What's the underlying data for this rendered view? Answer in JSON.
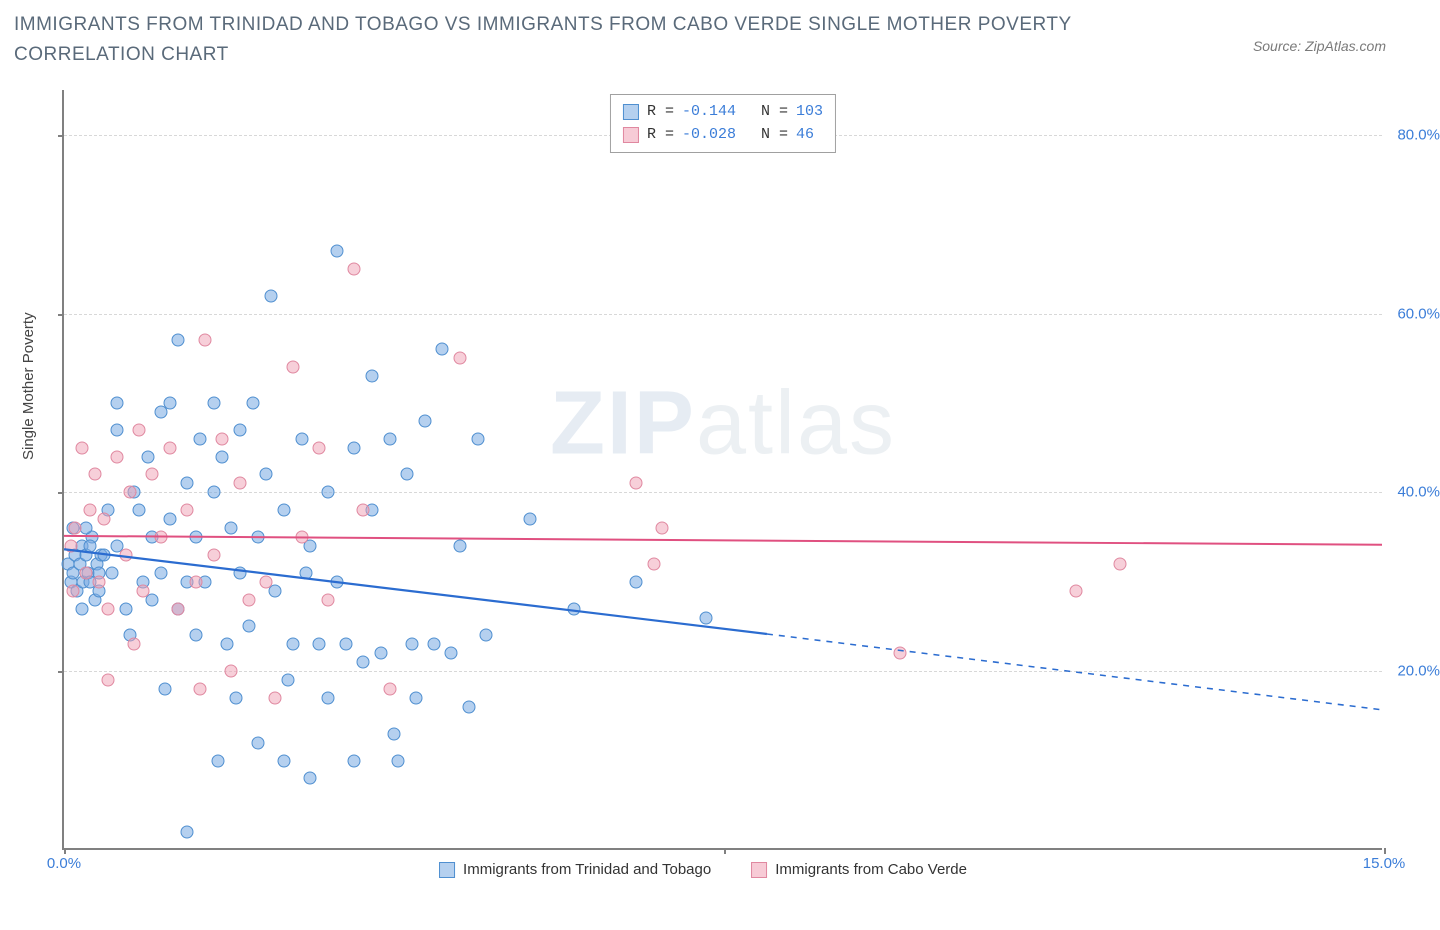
{
  "title": "IMMIGRANTS FROM TRINIDAD AND TOBAGO VS IMMIGRANTS FROM CABO VERDE SINGLE MOTHER POVERTY CORRELATION CHART",
  "source": "Source: ZipAtlas.com",
  "watermark_zip": "ZIP",
  "watermark_atlas": "atlas",
  "chart": {
    "type": "scatter",
    "ylabel": "Single Mother Poverty",
    "xlim": [
      0,
      15
    ],
    "ylim": [
      0,
      85
    ],
    "y_gridlines": [
      20,
      40,
      60,
      80
    ],
    "y_tick_labels": [
      "20.0%",
      "40.0%",
      "60.0%",
      "80.0%"
    ],
    "x_ticks": [
      0,
      7.5,
      15
    ],
    "x_tick_labels": [
      "0.0%",
      "",
      "15.0%"
    ],
    "background_color": "#ffffff",
    "grid_color": "#d8d8d8",
    "axis_color": "#808080",
    "tick_label_color": "#3b7dd8",
    "series": [
      {
        "key": "a",
        "name": "Immigrants from Trinidad and Tobago",
        "R": "-0.144",
        "N": "103",
        "marker_fill": "rgba(120,170,225,0.55)",
        "marker_stroke": "#4f8fd0",
        "marker_size": 13,
        "trend": {
          "x1": 0,
          "y1": 33.5,
          "x2": 8,
          "y2": 24,
          "x_dash_to": 15,
          "y_dash_to": 15.5,
          "color": "#2b6cd0",
          "width": 2.2
        },
        "points": [
          [
            0.05,
            32
          ],
          [
            0.08,
            30
          ],
          [
            0.1,
            31
          ],
          [
            0.12,
            33
          ],
          [
            0.15,
            29
          ],
          [
            0.18,
            32
          ],
          [
            0.2,
            34
          ],
          [
            0.22,
            30
          ],
          [
            0.25,
            33
          ],
          [
            0.27,
            31
          ],
          [
            0.3,
            30
          ],
          [
            0.32,
            35
          ],
          [
            0.35,
            28
          ],
          [
            0.38,
            32
          ],
          [
            0.4,
            31
          ],
          [
            0.42,
            33
          ],
          [
            0.1,
            36
          ],
          [
            0.2,
            27
          ],
          [
            0.25,
            36
          ],
          [
            0.3,
            34
          ],
          [
            0.4,
            29
          ],
          [
            0.45,
            33
          ],
          [
            0.5,
            38
          ],
          [
            0.55,
            31
          ],
          [
            0.6,
            34
          ],
          [
            0.6,
            47
          ],
          [
            0.7,
            27
          ],
          [
            0.75,
            24
          ],
          [
            0.8,
            40
          ],
          [
            0.85,
            38
          ],
          [
            0.6,
            50
          ],
          [
            0.9,
            30
          ],
          [
            0.95,
            44
          ],
          [
            1.0,
            35
          ],
          [
            1.0,
            28
          ],
          [
            1.1,
            49
          ],
          [
            1.1,
            31
          ],
          [
            1.15,
            18
          ],
          [
            1.2,
            50
          ],
          [
            1.2,
            37
          ],
          [
            1.3,
            27
          ],
          [
            1.3,
            57
          ],
          [
            1.4,
            41
          ],
          [
            1.4,
            30
          ],
          [
            1.5,
            24
          ],
          [
            1.5,
            35
          ],
          [
            1.55,
            46
          ],
          [
            1.6,
            30
          ],
          [
            1.7,
            50
          ],
          [
            1.7,
            40
          ],
          [
            1.75,
            10
          ],
          [
            1.8,
            44
          ],
          [
            1.85,
            23
          ],
          [
            1.9,
            36
          ],
          [
            1.95,
            17
          ],
          [
            2.0,
            47
          ],
          [
            2.0,
            31
          ],
          [
            2.1,
            25
          ],
          [
            2.15,
            50
          ],
          [
            2.2,
            35
          ],
          [
            2.2,
            12
          ],
          [
            2.3,
            42
          ],
          [
            2.35,
            62
          ],
          [
            2.4,
            29
          ],
          [
            2.5,
            10
          ],
          [
            2.5,
            38
          ],
          [
            2.55,
            19
          ],
          [
            2.6,
            23
          ],
          [
            2.7,
            46
          ],
          [
            2.75,
            31
          ],
          [
            2.8,
            8
          ],
          [
            2.8,
            34
          ],
          [
            2.9,
            23
          ],
          [
            3.0,
            17
          ],
          [
            3.0,
            40
          ],
          [
            3.1,
            67
          ],
          [
            3.1,
            30
          ],
          [
            3.2,
            23
          ],
          [
            3.3,
            45
          ],
          [
            3.3,
            10
          ],
          [
            3.4,
            21
          ],
          [
            3.5,
            38
          ],
          [
            3.5,
            53
          ],
          [
            3.6,
            22
          ],
          [
            3.7,
            46
          ],
          [
            3.75,
            13
          ],
          [
            3.8,
            10
          ],
          [
            3.9,
            42
          ],
          [
            3.95,
            23
          ],
          [
            4.0,
            17
          ],
          [
            4.1,
            48
          ],
          [
            4.2,
            23
          ],
          [
            4.3,
            56
          ],
          [
            4.4,
            22
          ],
          [
            4.5,
            34
          ],
          [
            4.6,
            16
          ],
          [
            4.7,
            46
          ],
          [
            4.8,
            24
          ],
          [
            5.3,
            37
          ],
          [
            5.8,
            27
          ],
          [
            6.5,
            30
          ],
          [
            7.3,
            26
          ],
          [
            1.4,
            2
          ]
        ]
      },
      {
        "key": "b",
        "name": "Immigrants from Cabo Verde",
        "R": "-0.028",
        "N": "46",
        "marker_fill": "rgba(240,160,180,0.50)",
        "marker_stroke": "#e088a0",
        "marker_size": 13,
        "trend": {
          "x1": 0,
          "y1": 35,
          "x2": 15,
          "y2": 34,
          "color": "#e05080",
          "width": 2.0
        },
        "points": [
          [
            0.08,
            34
          ],
          [
            0.1,
            29
          ],
          [
            0.12,
            36
          ],
          [
            0.2,
            45
          ],
          [
            0.25,
            31
          ],
          [
            0.3,
            38
          ],
          [
            0.35,
            42
          ],
          [
            0.4,
            30
          ],
          [
            0.45,
            37
          ],
          [
            0.5,
            27
          ],
          [
            0.5,
            19
          ],
          [
            0.6,
            44
          ],
          [
            0.7,
            33
          ],
          [
            0.75,
            40
          ],
          [
            0.8,
            23
          ],
          [
            0.85,
            47
          ],
          [
            0.9,
            29
          ],
          [
            1.0,
            42
          ],
          [
            1.1,
            35
          ],
          [
            1.2,
            45
          ],
          [
            1.3,
            27
          ],
          [
            1.4,
            38
          ],
          [
            1.5,
            30
          ],
          [
            1.55,
            18
          ],
          [
            1.6,
            57
          ],
          [
            1.7,
            33
          ],
          [
            1.8,
            46
          ],
          [
            1.9,
            20
          ],
          [
            2.0,
            41
          ],
          [
            2.1,
            28
          ],
          [
            2.3,
            30
          ],
          [
            2.4,
            17
          ],
          [
            2.6,
            54
          ],
          [
            2.7,
            35
          ],
          [
            2.9,
            45
          ],
          [
            3.0,
            28
          ],
          [
            3.3,
            65
          ],
          [
            3.4,
            38
          ],
          [
            3.7,
            18
          ],
          [
            4.5,
            55
          ],
          [
            6.5,
            41
          ],
          [
            6.7,
            32
          ],
          [
            6.8,
            36
          ],
          [
            9.5,
            22
          ],
          [
            11.5,
            29
          ],
          [
            12.0,
            32
          ]
        ]
      }
    ]
  },
  "legend_top": {
    "rows": [
      {
        "swatch": "a",
        "r_label": "R =",
        "r_val": "-0.144",
        "n_label": "N =",
        "n_val": "103"
      },
      {
        "swatch": "b",
        "r_label": "R =",
        "r_val": "-0.028",
        "n_label": "N =",
        "n_val": " 46"
      }
    ]
  },
  "bottom_legend": [
    {
      "swatch": "a",
      "label": "Immigrants from Trinidad and Tobago"
    },
    {
      "swatch": "b",
      "label": "Immigrants from Cabo Verde"
    }
  ]
}
